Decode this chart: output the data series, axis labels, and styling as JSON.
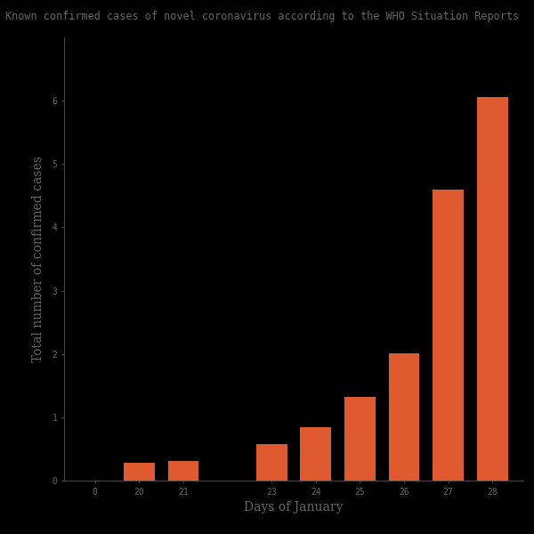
{
  "title": "Known confirmed cases of novel coronavirus according to the WHO Situation Reports",
  "xlabel": "Days of January",
  "ylabel": "Total number of confirmed cases",
  "background_color": "#000000",
  "text_color": "#666666",
  "bar_color": "#e05a30",
  "categories": [
    "",
    "20",
    "21",
    "",
    "23",
    "24",
    "25",
    "26",
    "27",
    "28"
  ],
  "values": [
    0,
    282,
    314,
    0,
    581,
    846,
    1320,
    2014,
    4593,
    6065
  ],
  "title_fontsize": 8.5,
  "axis_label_fontsize": 10,
  "tick_fontsize": 7,
  "bar_width": 0.7,
  "ylim": [
    0,
    7000
  ],
  "yticks": [
    0,
    1000,
    2000,
    3000,
    4000,
    5000,
    6000
  ],
  "ytick_labels": [
    "0",
    "1",
    "2",
    "3",
    "4",
    "5",
    "6"
  ]
}
